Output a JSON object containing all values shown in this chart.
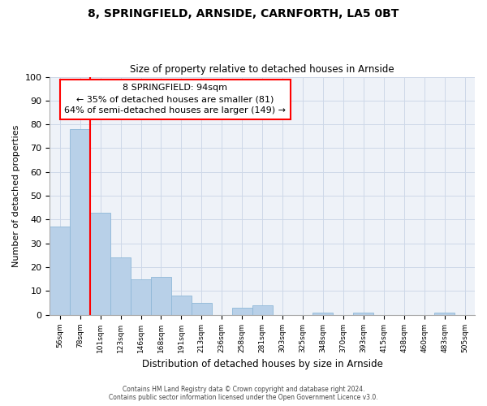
{
  "title": "8, SPRINGFIELD, ARNSIDE, CARNFORTH, LA5 0BT",
  "subtitle": "Size of property relative to detached houses in Arnside",
  "xlabel": "Distribution of detached houses by size in Arnside",
  "ylabel": "Number of detached properties",
  "bar_color": "#b8d0e8",
  "bar_edge_color": "#8fb8d8",
  "categories": [
    "56sqm",
    "78sqm",
    "101sqm",
    "123sqm",
    "146sqm",
    "168sqm",
    "191sqm",
    "213sqm",
    "236sqm",
    "258sqm",
    "281sqm",
    "303sqm",
    "325sqm",
    "348sqm",
    "370sqm",
    "393sqm",
    "415sqm",
    "438sqm",
    "460sqm",
    "483sqm",
    "505sqm"
  ],
  "values": [
    37,
    78,
    43,
    24,
    15,
    16,
    8,
    5,
    0,
    3,
    4,
    0,
    0,
    1,
    0,
    1,
    0,
    0,
    0,
    1,
    0
  ],
  "ylim": [
    0,
    100
  ],
  "yticks": [
    0,
    10,
    20,
    30,
    40,
    50,
    60,
    70,
    80,
    90,
    100
  ],
  "red_line_x": 1.5,
  "marker_label": "8 SPRINGFIELD: 94sqm",
  "annotation_line1": "← 35% of detached houses are smaller (81)",
  "annotation_line2": "64% of semi-detached houses are larger (149) →",
  "footer1": "Contains HM Land Registry data © Crown copyright and database right 2024.",
  "footer2": "Contains public sector information licensed under the Open Government Licence v3.0.",
  "grid_color": "#cdd8e8",
  "background_color": "#eef2f8"
}
